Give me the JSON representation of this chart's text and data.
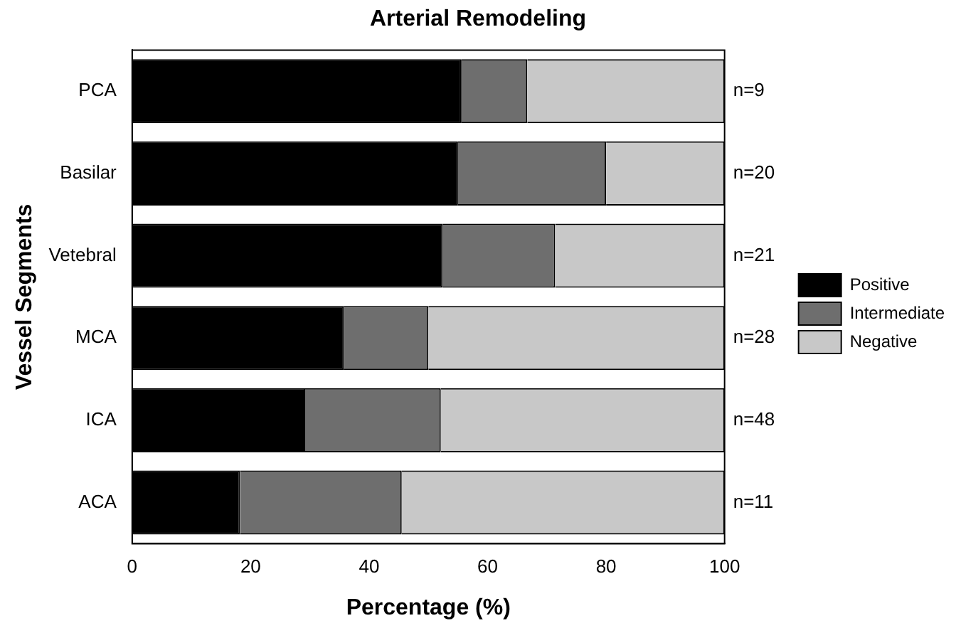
{
  "chart_data": {
    "type": "bar",
    "orientation": "horizontal",
    "stacked": true,
    "title": "Arterial Remodeling",
    "xlabel": "Percentage (%)",
    "ylabel": "Vessel Segments",
    "categories": [
      "PCA",
      "Basilar",
      "Vetebral",
      "MCA",
      "ICA",
      "ACA"
    ],
    "series": [
      {
        "name": "Positive",
        "color": "#000000",
        "values": [
          55.6,
          55,
          52.4,
          35.7,
          29.2,
          18.2
        ]
      },
      {
        "name": "Intermediate",
        "color": "#6e6e6e",
        "values": [
          11.1,
          25,
          19,
          14.3,
          22.9,
          27.3
        ]
      },
      {
        "name": "Negative",
        "color": "#c8c8c8",
        "values": [
          33.3,
          20,
          28.6,
          50,
          47.9,
          54.5
        ]
      }
    ],
    "xlim": [
      0,
      100
    ],
    "xticks": [
      0,
      20,
      40,
      60,
      80,
      100
    ],
    "grid": false,
    "legend": "right",
    "annotations": [
      "n=9",
      "n=20",
      "n=21",
      "n=28",
      "n=48",
      "n=11"
    ]
  }
}
